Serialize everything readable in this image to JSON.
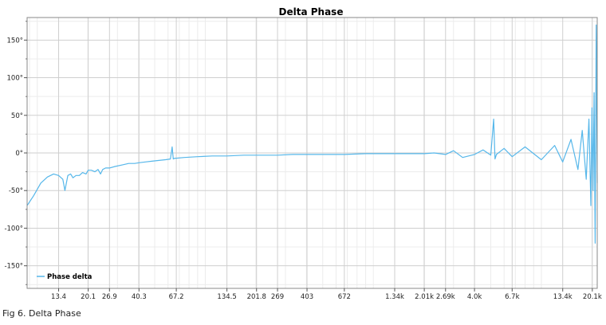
{
  "caption": "Fig 6. Delta Phase",
  "colors": {
    "series": "#56b7ea",
    "grid_major": "#cfcfcf",
    "grid_minor": "#ececec",
    "frame": "#888888"
  },
  "chart_data": {
    "type": "line",
    "title": "Delta Phase",
    "xlabel": "",
    "ylabel": "",
    "xscale": "log",
    "xlim": [
      8.7,
      21500
    ],
    "ylim": [
      -180,
      180
    ],
    "grid": true,
    "legend_position": "bottom-left",
    "x_tick_labels": [
      "13.4",
      "20.1",
      "26.9",
      "40.3",
      "67.2",
      "134.5",
      "201.8",
      "269",
      "403",
      "672",
      "1.34k",
      "2.01k",
      "2.69k",
      "4.0k",
      "6.7k",
      "13.4k",
      "20.1k"
    ],
    "x_tick_values": [
      13.4,
      20.1,
      26.9,
      40.3,
      67.2,
      134.5,
      201.8,
      269,
      403,
      672,
      1340,
      2010,
      2690,
      4000,
      6700,
      13400,
      20100
    ],
    "y_tick_labels": [
      "150°",
      "100°",
      "50°",
      "0°",
      "-50°",
      "-100°",
      "-150°"
    ],
    "y_tick_values": [
      150,
      100,
      50,
      0,
      -50,
      -100,
      -150
    ],
    "series": [
      {
        "name": "Phase delta",
        "x": [
          8.7,
          9.5,
          10.5,
          11.5,
          12.5,
          13.4,
          14.2,
          14.6,
          15.2,
          15.8,
          16.3,
          17.0,
          17.8,
          18.6,
          19.5,
          20.1,
          21.0,
          22.0,
          23.0,
          23.8,
          24.5,
          25.5,
          26.9,
          29,
          32,
          35,
          38,
          40.3,
          44,
          48,
          53,
          58,
          62,
          63.5,
          64.5,
          66,
          67.2,
          75,
          90,
          110,
          134.5,
          170,
          201.8,
          269,
          330,
          403,
          520,
          672,
          900,
          1100,
          1340,
          1600,
          2010,
          2300,
          2690,
          3000,
          3400,
          4000,
          4500,
          5000,
          5200,
          5300,
          5400,
          6000,
          6700,
          8000,
          10000,
          12000,
          13400,
          15000,
          16500,
          17500,
          18500,
          19200,
          19700,
          20000,
          20300,
          20600,
          20900,
          21200,
          21500
        ],
        "y": [
          -70,
          -57,
          -40,
          -32,
          -28,
          -30,
          -35,
          -50,
          -30,
          -28,
          -33,
          -30,
          -30,
          -26,
          -28,
          -23,
          -23,
          -25,
          -22,
          -28,
          -22,
          -20,
          -20,
          -18,
          -16,
          -14,
          -14,
          -13,
          -12,
          -11,
          -10,
          -9,
          -8,
          8,
          -8,
          -7,
          -7,
          -6,
          -5,
          -4,
          -4,
          -3,
          -3,
          -3,
          -2,
          -2,
          -2,
          -2,
          -1,
          -1,
          -1,
          -1,
          -1,
          0,
          -2,
          3,
          -6,
          -2,
          4,
          -3,
          45,
          -8,
          -2,
          6,
          -5,
          8,
          -9,
          10,
          -12,
          18,
          -22,
          30,
          -35,
          45,
          -70,
          60,
          -50,
          80,
          -120,
          170,
          -40
        ]
      }
    ]
  }
}
